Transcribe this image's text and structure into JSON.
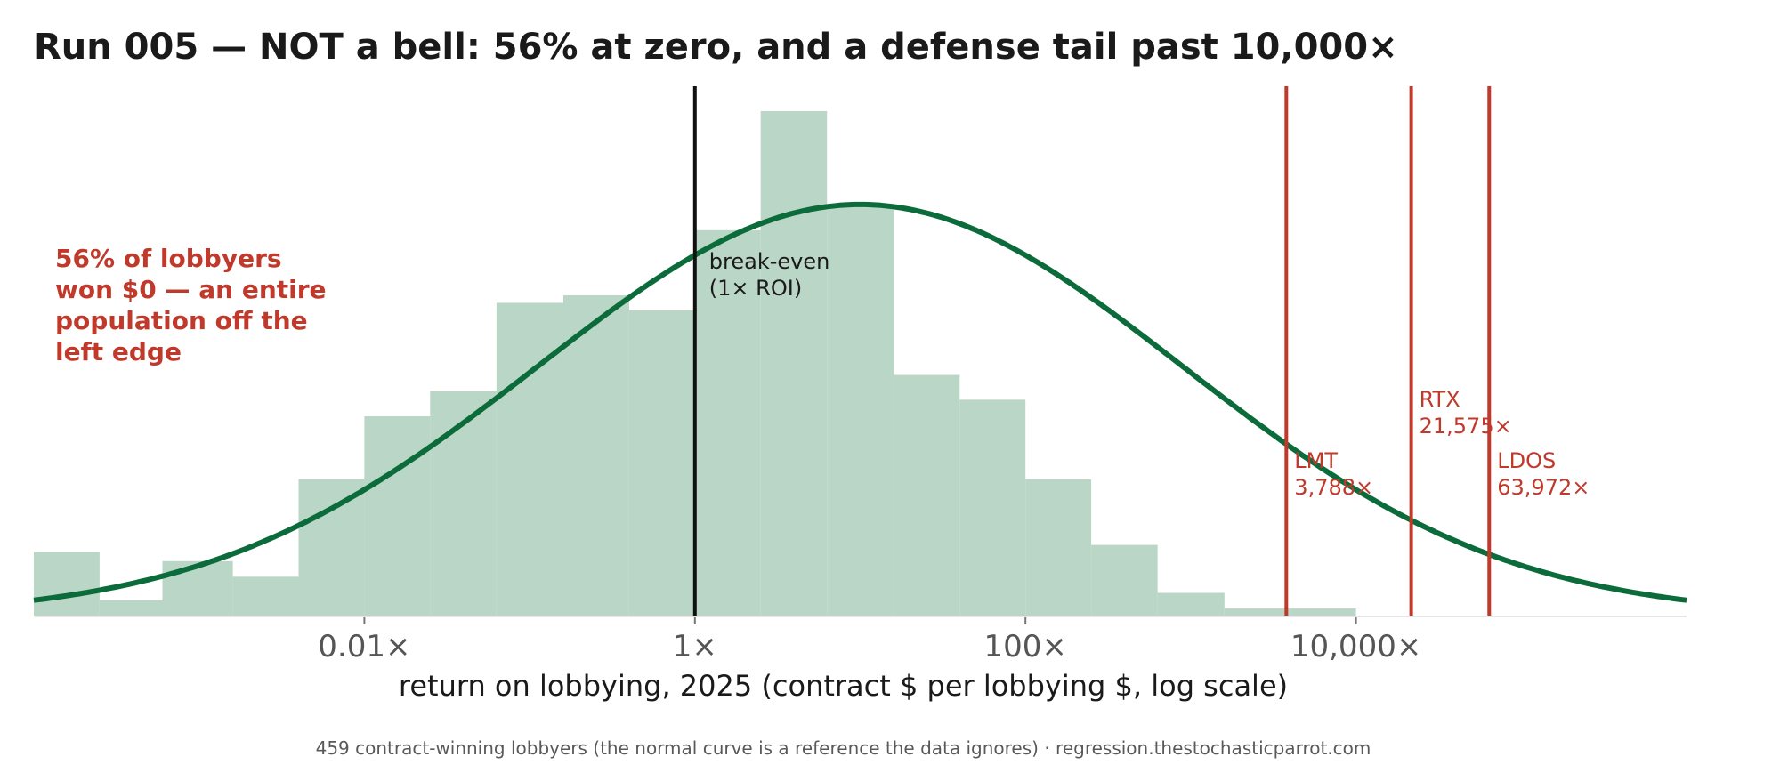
{
  "title": "Run 005 — NOT a bell: 56% at zero, and a defense tail past 10,000×",
  "callout": "56% of lobbyers\nwon $0 — an entire\npopulation off the\nleft edge",
  "footer": "459 contract-winning lobbyers (the normal curve is a reference the data ignores) · regression.thestochasticparrot.com",
  "colors": {
    "bar": "#bad6c6",
    "curve": "#0b6b3a",
    "breakeven": "#111111",
    "marker": "#c0392b",
    "tick_text": "#555555"
  },
  "chart_data": {
    "type": "bar",
    "title": "Run 005 — NOT a bell: 56% at zero, and a defense tail past 10,000×",
    "xlabel": "return on lobbying, 2025  (contract $ per lobbying $, log scale)",
    "ylabel": "",
    "x_scale": "log10",
    "xlim": [
      0.0001,
      1000000
    ],
    "ylim": [
      0,
      1
    ],
    "grid": false,
    "x_ticks": [
      {
        "value": 0.01,
        "label": "0.01×"
      },
      {
        "value": 1,
        "label": "1×"
      },
      {
        "value": 100,
        "label": "100×"
      },
      {
        "value": 10000,
        "label": "10,000×"
      }
    ],
    "histogram": {
      "bin_edges": [
        0.0001,
        0.00025,
        0.0006,
        0.0016,
        0.004,
        0.01,
        0.025,
        0.063,
        0.16,
        0.4,
        1,
        2.5,
        6.3,
        16,
        40,
        100,
        250,
        630,
        1600,
        4000,
        10000,
        25000,
        63000,
        160000
      ],
      "values": [
        0.126,
        0.03,
        0.108,
        0.077,
        0.27,
        0.395,
        0.445,
        0.62,
        0.635,
        0.605,
        0.764,
        1.0,
        0.81,
        0.477,
        0.428,
        0.27,
        0.14,
        0.045,
        0.014,
        0.014,
        0,
        0,
        0
      ]
    },
    "reference_curve": {
      "name": "normal curve",
      "type": "normal_on_log10_x",
      "mean_log10": 1.0,
      "sd_log10": 1.95,
      "peak": 0.815
    },
    "breakeven": {
      "value": 1,
      "label": "break-even\n(1× ROI)"
    },
    "markers": [
      {
        "name": "LMT",
        "value": 3788,
        "label": "LMT\n3,788×"
      },
      {
        "name": "RTX",
        "value": 21575,
        "label": "RTX\n21,575×"
      },
      {
        "name": "LDOS",
        "value": 63972,
        "label": "LDOS\n63,972×"
      }
    ]
  }
}
